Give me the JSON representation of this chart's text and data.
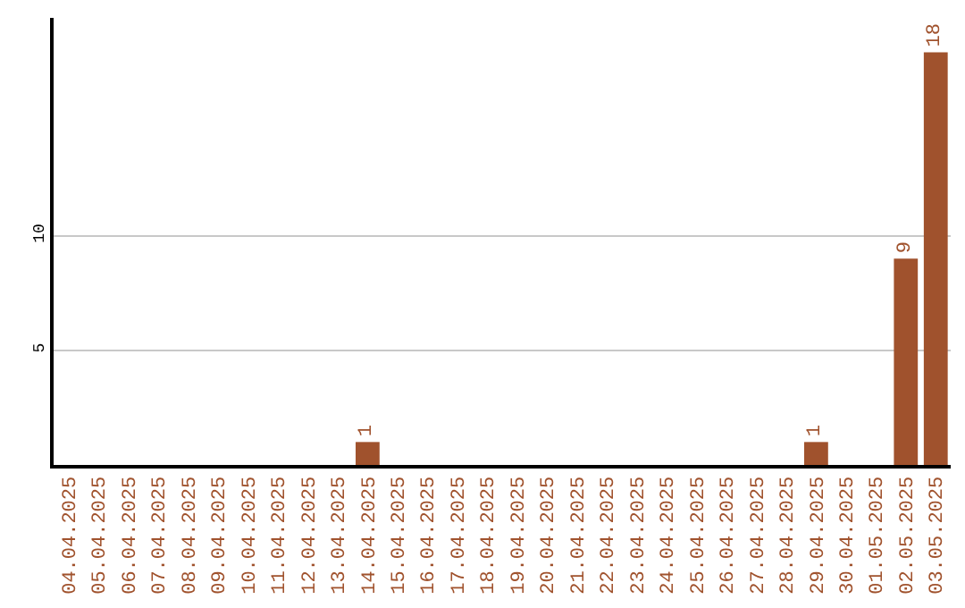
{
  "chart_data": {
    "type": "bar",
    "categories": [
      "04.04.2025",
      "05.04.2025",
      "06.04.2025",
      "07.04.2025",
      "08.04.2025",
      "09.04.2025",
      "10.04.2025",
      "11.04.2025",
      "12.04.2025",
      "13.04.2025",
      "14.04.2025",
      "15.04.2025",
      "16.04.2025",
      "17.04.2025",
      "18.04.2025",
      "19.04.2025",
      "20.04.2025",
      "21.04.2025",
      "22.04.2025",
      "23.04.2025",
      "24.04.2025",
      "25.04.2025",
      "26.04.2025",
      "27.04.2025",
      "28.04.2025",
      "29.04.2025",
      "30.04.2025",
      "01.05.2025",
      "02.05.2025",
      "03.05.2025"
    ],
    "values": [
      0,
      0,
      0,
      0,
      0,
      0,
      0,
      0,
      0,
      0,
      1,
      0,
      0,
      0,
      0,
      0,
      0,
      0,
      0,
      0,
      0,
      0,
      0,
      0,
      0,
      1,
      0,
      0,
      9,
      18
    ],
    "value_labels": [
      null,
      null,
      null,
      null,
      null,
      null,
      null,
      null,
      null,
      null,
      "1",
      null,
      null,
      null,
      null,
      null,
      null,
      null,
      null,
      null,
      null,
      null,
      null,
      null,
      null,
      "1",
      null,
      null,
      "9",
      "18"
    ],
    "color": "#a0522d",
    "ylim": [
      0,
      19.5
    ],
    "yticks": [
      5,
      10
    ],
    "grid": "y",
    "legend": false
  }
}
